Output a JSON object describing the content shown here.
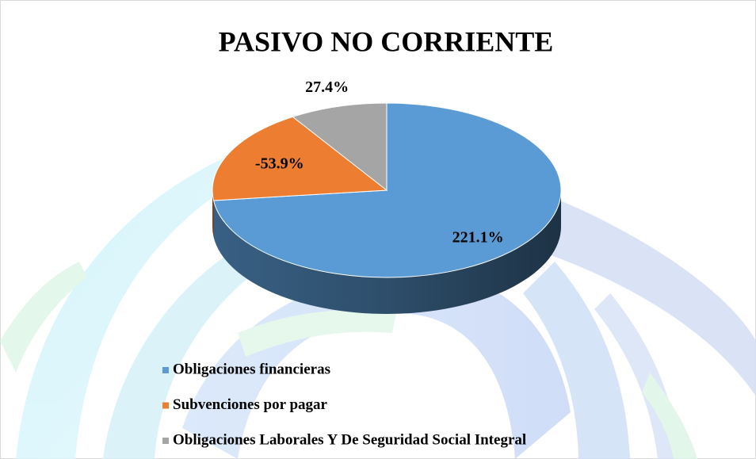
{
  "chart_data": {
    "type": "pie",
    "title": "PASIVO NO CORRIENTE",
    "categories": [
      "Obligaciones financieras",
      "Subvenciones por pagar",
      "Obligaciones Laborales Y De Seguridad Social Integral"
    ],
    "values": [
      221.1,
      -53.9,
      27.4
    ],
    "value_labels": [
      "221.1%",
      "-53.9%",
      "27.4%"
    ],
    "colors": [
      "#5b9bd5",
      "#ed7d31",
      "#a5a5a5"
    ],
    "legend": "bottom-left"
  }
}
